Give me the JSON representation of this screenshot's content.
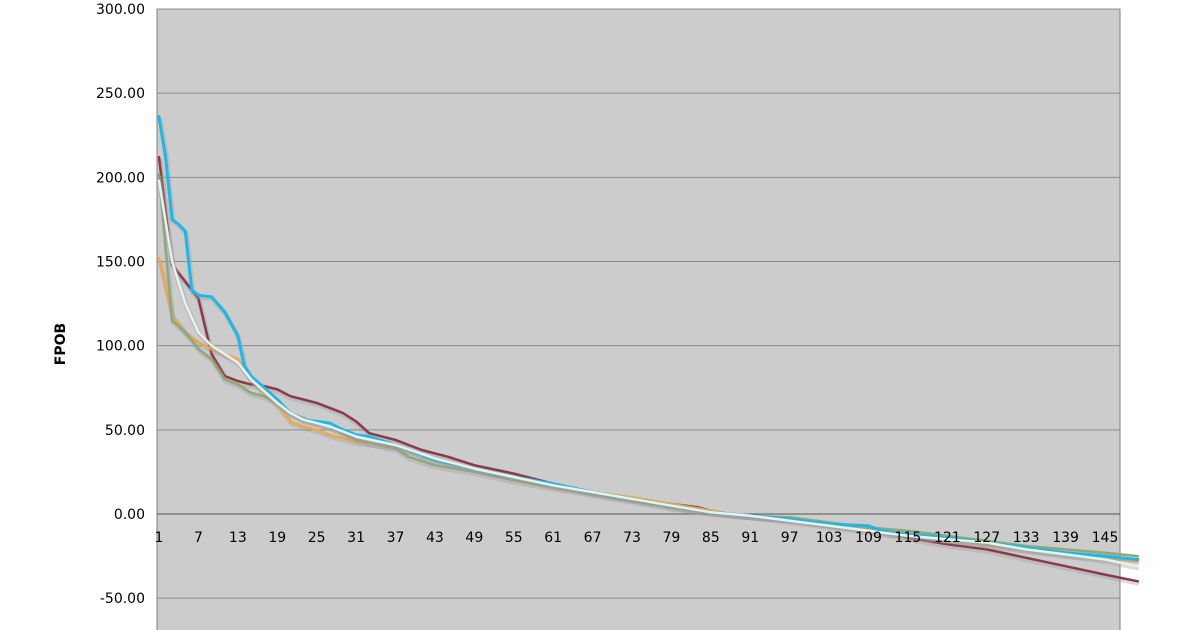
{
  "chart_data": {
    "type": "line",
    "title": "",
    "xlabel": "",
    "ylabel": "FPOB",
    "ylim": [
      -70,
      300
    ],
    "xlim": [
      1,
      150
    ],
    "y_ticks": [
      "300.00",
      "250.00",
      "200.00",
      "150.00",
      "100.00",
      "50.00",
      "0.00",
      "-50.00"
    ],
    "y_tick_values": [
      300,
      250,
      200,
      150,
      100,
      50,
      0,
      -50
    ],
    "x_ticks": [
      "1",
      "7",
      "13",
      "19",
      "25",
      "31",
      "37",
      "43",
      "49",
      "55",
      "61",
      "67",
      "73",
      "79",
      "85",
      "91",
      "97",
      "103",
      "109",
      "115",
      "121",
      "127",
      "133",
      "139",
      "145"
    ],
    "x_tick_values": [
      1,
      7,
      13,
      19,
      25,
      31,
      37,
      43,
      49,
      55,
      61,
      67,
      73,
      79,
      85,
      91,
      97,
      103,
      109,
      115,
      121,
      127,
      133,
      139,
      145
    ],
    "plot_background": "#cccccc",
    "grid": true,
    "legend": "none",
    "series": [
      {
        "color": "#8b3a4a",
        "values": [
          [
            1,
            212
          ],
          [
            3,
            148
          ],
          [
            5,
            138
          ],
          [
            7,
            128
          ],
          [
            9,
            95
          ],
          [
            11,
            82
          ],
          [
            13,
            79
          ],
          [
            15,
            77
          ],
          [
            17,
            76
          ],
          [
            19,
            74
          ],
          [
            21,
            70
          ],
          [
            23,
            68
          ],
          [
            25,
            66
          ],
          [
            27,
            63
          ],
          [
            29,
            60
          ],
          [
            31,
            55
          ],
          [
            33,
            48
          ],
          [
            37,
            44
          ],
          [
            41,
            38
          ],
          [
            45,
            34
          ],
          [
            49,
            29
          ],
          [
            55,
            24
          ],
          [
            61,
            18
          ],
          [
            67,
            13
          ],
          [
            73,
            9
          ],
          [
            79,
            6
          ],
          [
            83,
            4
          ],
          [
            85,
            2
          ],
          [
            88,
            0
          ],
          [
            91,
            -1
          ],
          [
            97,
            -3
          ],
          [
            103,
            -6
          ],
          [
            109,
            -9
          ],
          [
            115,
            -14
          ],
          [
            121,
            -18
          ],
          [
            127,
            -21
          ],
          [
            133,
            -26
          ],
          [
            139,
            -31
          ],
          [
            145,
            -36
          ],
          [
            150,
            -40
          ]
        ]
      },
      {
        "color": "#f0a64a",
        "values": [
          [
            1,
            152
          ],
          [
            3,
            118
          ],
          [
            5,
            108
          ],
          [
            7,
            102
          ],
          [
            9,
            98
          ],
          [
            11,
            95
          ],
          [
            13,
            92
          ],
          [
            15,
            80
          ],
          [
            17,
            72
          ],
          [
            19,
            65
          ],
          [
            21,
            55
          ],
          [
            23,
            52
          ],
          [
            25,
            50
          ],
          [
            27,
            47
          ],
          [
            29,
            45
          ],
          [
            31,
            43
          ],
          [
            37,
            40
          ],
          [
            43,
            33
          ],
          [
            49,
            27
          ],
          [
            55,
            22
          ],
          [
            61,
            17
          ],
          [
            67,
            13
          ],
          [
            73,
            10
          ],
          [
            79,
            6
          ],
          [
            85,
            2
          ],
          [
            88,
            0
          ],
          [
            91,
            -1
          ],
          [
            97,
            -3
          ],
          [
            103,
            -6
          ],
          [
            109,
            -9
          ],
          [
            115,
            -12
          ],
          [
            121,
            -15
          ],
          [
            127,
            -18
          ],
          [
            133,
            -21
          ],
          [
            139,
            -24
          ],
          [
            145,
            -26
          ],
          [
            150,
            -28
          ]
        ]
      },
      {
        "color": "#8fa878",
        "values": [
          [
            1,
            202
          ],
          [
            3,
            115
          ],
          [
            5,
            108
          ],
          [
            7,
            98
          ],
          [
            9,
            92
          ],
          [
            11,
            80
          ],
          [
            13,
            77
          ],
          [
            15,
            72
          ],
          [
            17,
            70
          ],
          [
            19,
            66
          ],
          [
            21,
            60
          ],
          [
            23,
            57
          ],
          [
            25,
            54
          ],
          [
            27,
            52
          ],
          [
            29,
            48
          ],
          [
            31,
            44
          ],
          [
            37,
            39
          ],
          [
            39,
            34
          ],
          [
            43,
            29
          ],
          [
            49,
            25
          ],
          [
            55,
            20
          ],
          [
            61,
            16
          ],
          [
            67,
            12
          ],
          [
            73,
            8
          ],
          [
            79,
            4
          ],
          [
            85,
            1
          ],
          [
            88,
            0
          ],
          [
            91,
            -1
          ],
          [
            97,
            -2
          ],
          [
            103,
            -5
          ],
          [
            109,
            -8
          ],
          [
            115,
            -10
          ],
          [
            121,
            -13
          ],
          [
            127,
            -16
          ],
          [
            133,
            -19
          ],
          [
            139,
            -21
          ],
          [
            145,
            -23
          ],
          [
            150,
            -25
          ]
        ]
      },
      {
        "color": "#1fb8e6",
        "values": [
          [
            1,
            236
          ],
          [
            2,
            212
          ],
          [
            3,
            175
          ],
          [
            4,
            172
          ],
          [
            5,
            168
          ],
          [
            6,
            133
          ],
          [
            7,
            130
          ],
          [
            9,
            129
          ],
          [
            11,
            120
          ],
          [
            13,
            106
          ],
          [
            14,
            88
          ],
          [
            15,
            82
          ],
          [
            17,
            75
          ],
          [
            19,
            68
          ],
          [
            21,
            60
          ],
          [
            23,
            56
          ],
          [
            25,
            55
          ],
          [
            27,
            54
          ],
          [
            29,
            50
          ],
          [
            31,
            47
          ],
          [
            33,
            46
          ],
          [
            37,
            41
          ],
          [
            43,
            32
          ],
          [
            49,
            27
          ],
          [
            55,
            22
          ],
          [
            61,
            18
          ],
          [
            67,
            13
          ],
          [
            73,
            9
          ],
          [
            79,
            5
          ],
          [
            85,
            1
          ],
          [
            88,
            0
          ],
          [
            91,
            -1
          ],
          [
            97,
            -3
          ],
          [
            103,
            -6
          ],
          [
            109,
            -7
          ],
          [
            111,
            -10
          ],
          [
            115,
            -12
          ],
          [
            121,
            -14
          ],
          [
            127,
            -17
          ],
          [
            133,
            -20
          ],
          [
            139,
            -23
          ],
          [
            145,
            -25
          ],
          [
            150,
            -27
          ]
        ]
      },
      {
        "color": "#e6f2ec",
        "values": [
          [
            1,
            198
          ],
          [
            3,
            150
          ],
          [
            5,
            125
          ],
          [
            7,
            108
          ],
          [
            9,
            100
          ],
          [
            11,
            95
          ],
          [
            13,
            90
          ],
          [
            15,
            80
          ],
          [
            17,
            73
          ],
          [
            19,
            66
          ],
          [
            21,
            60
          ],
          [
            23,
            56
          ],
          [
            25,
            54
          ],
          [
            27,
            52
          ],
          [
            29,
            49
          ],
          [
            31,
            46
          ],
          [
            37,
            41
          ],
          [
            43,
            33
          ],
          [
            49,
            27
          ],
          [
            55,
            22
          ],
          [
            61,
            17
          ],
          [
            67,
            13
          ],
          [
            73,
            9
          ],
          [
            79,
            5
          ],
          [
            85,
            1
          ],
          [
            88,
            0
          ],
          [
            91,
            -1
          ],
          [
            97,
            -4
          ],
          [
            103,
            -7
          ],
          [
            109,
            -10
          ],
          [
            115,
            -13
          ],
          [
            121,
            -15
          ],
          [
            127,
            -17
          ],
          [
            133,
            -21
          ],
          [
            139,
            -24
          ],
          [
            145,
            -27
          ],
          [
            150,
            -31
          ]
        ]
      }
    ]
  }
}
